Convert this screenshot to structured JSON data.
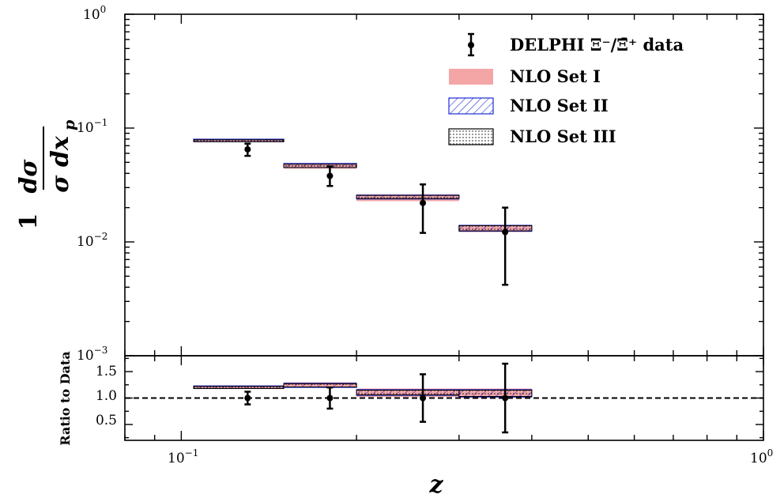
{
  "chart_data": [
    {
      "type": "scatter",
      "panel": "main",
      "xlabel": "z",
      "ylabel": {
        "numerator": "1",
        "numerator_symbol": "dσ",
        "denominator": "σ dx",
        "denominator_sub": "p"
      },
      "xscale": "log",
      "yscale": "log",
      "xlim": [
        0.08,
        1.0
      ],
      "ylim": [
        0.001,
        1.0
      ],
      "yticks": [
        {
          "base": "10",
          "exp": "0"
        },
        {
          "base": "10",
          "exp": "−1"
        },
        {
          "base": "10",
          "exp": "−2"
        },
        {
          "base": "10",
          "exp": "−3"
        }
      ],
      "legend_position": "top-right",
      "legend": [
        {
          "label": "DELPHI Ξ⁻/Ξ̄⁺ data",
          "kind": "errorbar"
        },
        {
          "label": "NLO Set I",
          "kind": "band",
          "color": "#f4a6a6"
        },
        {
          "label": "NLO Set II",
          "kind": "hatch-diagonal",
          "color": "#1f2bd6"
        },
        {
          "label": "NLO Set III",
          "kind": "hatch-dots",
          "color": "#000000"
        }
      ],
      "data_points": [
        {
          "x": 0.13,
          "y": 0.065,
          "yerr_low": 0.057,
          "yerr_high": 0.073
        },
        {
          "x": 0.18,
          "y": 0.038,
          "yerr_low": 0.031,
          "yerr_high": 0.046
        },
        {
          "x": 0.26,
          "y": 0.022,
          "yerr_low": 0.012,
          "yerr_high": 0.032
        },
        {
          "x": 0.36,
          "y": 0.0122,
          "yerr_low": 0.0042,
          "yerr_high": 0.02
        }
      ],
      "bins": [
        {
          "x_low": 0.105,
          "x_high": 0.15,
          "set1": [
            0.075,
            0.08
          ],
          "set2": [
            0.076,
            0.08
          ],
          "set3": [
            0.076,
            0.079
          ]
        },
        {
          "x_low": 0.15,
          "x_high": 0.2,
          "set1": [
            0.044,
            0.049
          ],
          "set2": [
            0.045,
            0.049
          ],
          "set3": [
            0.045,
            0.048
          ]
        },
        {
          "x_low": 0.2,
          "x_high": 0.3,
          "set1": [
            0.0228,
            0.0262
          ],
          "set2": [
            0.0238,
            0.0258
          ],
          "set3": [
            0.024,
            0.0256
          ]
        },
        {
          "x_low": 0.3,
          "x_high": 0.4,
          "set1": [
            0.0122,
            0.0141
          ],
          "set2": [
            0.0124,
            0.014
          ],
          "set3": [
            0.0125,
            0.0139
          ]
        }
      ]
    },
    {
      "type": "scatter",
      "panel": "ratio",
      "ylabel": "Ratio to Data",
      "xlabel": "z",
      "xscale": "log",
      "xlim": [
        0.08,
        1.0
      ],
      "ylim": [
        0.2,
        1.8
      ],
      "yticks": [
        "1.5",
        "1.0",
        "0.5"
      ],
      "xticks": [
        {
          "base": "10",
          "exp": "−1"
        },
        {
          "base": "10",
          "exp": "0"
        }
      ],
      "reference_line": 1.0,
      "data_points": [
        {
          "x": 0.13,
          "y": 1.0,
          "yerr_low": 0.88,
          "yerr_high": 1.12
        },
        {
          "x": 0.18,
          "y": 1.0,
          "yerr_low": 0.8,
          "yerr_high": 1.2
        },
        {
          "x": 0.26,
          "y": 1.0,
          "yerr_low": 0.55,
          "yerr_high": 1.45
        },
        {
          "x": 0.36,
          "y": 1.0,
          "yerr_low": 0.35,
          "yerr_high": 1.65
        }
      ],
      "bins": [
        {
          "x_low": 0.105,
          "x_high": 0.15,
          "set1": [
            1.17,
            1.24
          ],
          "set2": [
            1.18,
            1.23
          ],
          "set3": [
            1.18,
            1.22
          ]
        },
        {
          "x_low": 0.15,
          "x_high": 0.2,
          "set1": [
            1.2,
            1.3
          ],
          "set2": [
            1.2,
            1.28
          ],
          "set3": [
            1.21,
            1.27
          ]
        },
        {
          "x_low": 0.2,
          "x_high": 0.3,
          "set1": [
            1.02,
            1.18
          ],
          "set2": [
            1.05,
            1.16
          ],
          "set3": [
            1.06,
            1.15
          ]
        },
        {
          "x_low": 0.3,
          "x_high": 0.4,
          "set1": [
            1.0,
            1.18
          ],
          "set2": [
            1.02,
            1.16
          ],
          "set3": [
            1.03,
            1.15
          ]
        }
      ]
    }
  ],
  "colors": {
    "set1_fill": "#f4a6a6",
    "set2_hatch": "#1f2bd6",
    "set3_dots": "#000000",
    "data": "#000000"
  }
}
